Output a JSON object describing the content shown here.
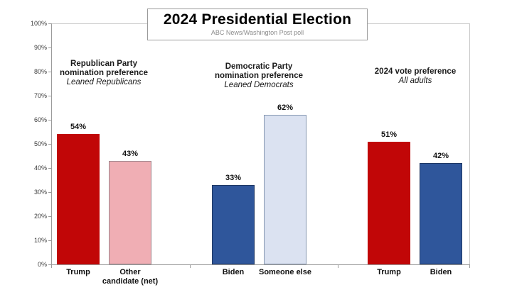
{
  "title": "2024 Presidential Election",
  "subtitle": "ABC News/Washington Post poll",
  "chart_data": {
    "type": "bar",
    "title": "2024 Presidential Election",
    "subtitle": "ABC News/Washington Post poll",
    "ylabel": "",
    "xlabel": "",
    "ylim": [
      0,
      100
    ],
    "grid": false,
    "legend": "none",
    "y_tick_labels": [
      "0%",
      "10%",
      "20%",
      "30%",
      "40%",
      "50%",
      "60%",
      "70%",
      "80%",
      "90%",
      "100%"
    ],
    "groups": [
      {
        "heading": [
          "Republican Party",
          "nomination preference"
        ],
        "note": "Leaned Republicans",
        "bars": [
          {
            "label": "Trump",
            "label_lines": [
              "Trump"
            ],
            "value": 54,
            "display": "54%",
            "fill": "#c10607",
            "border": "#c10607"
          },
          {
            "label": "Other candidate (net)",
            "label_lines": [
              "Other",
              "candidate (net)"
            ],
            "value": 43,
            "display": "43%",
            "fill": "#f0aeb4",
            "border": "#9e868c"
          }
        ]
      },
      {
        "heading": [
          "Democratic Party",
          "nomination preference"
        ],
        "note": "Leaned Democrats",
        "bars": [
          {
            "label": "Biden",
            "label_lines": [
              "Biden"
            ],
            "value": 33,
            "display": "33%",
            "fill": "#2f569b",
            "border": "#1f3864"
          },
          {
            "label": "Someone else",
            "label_lines": [
              "Someone else"
            ],
            "value": 62,
            "display": "62%",
            "fill": "#dbe2f1",
            "border": "#8496b0"
          }
        ]
      },
      {
        "heading": [
          "2024 vote preference"
        ],
        "note": "All adults",
        "bars": [
          {
            "label": "Trump",
            "label_lines": [
              "Trump"
            ],
            "value": 51,
            "display": "51%",
            "fill": "#c10607",
            "border": "#c10607"
          },
          {
            "label": "Biden",
            "label_lines": [
              "Biden"
            ],
            "value": 42,
            "display": "42%",
            "fill": "#2f569b",
            "border": "#1f3864"
          }
        ]
      }
    ],
    "colors": {
      "republican_red": "#c10607",
      "republican_pink": "#f0aeb4",
      "democrat_dark_blue": "#2f569b",
      "democrat_light_blue": "#dbe2f1",
      "axis_gray": "#9b9b9b"
    }
  }
}
